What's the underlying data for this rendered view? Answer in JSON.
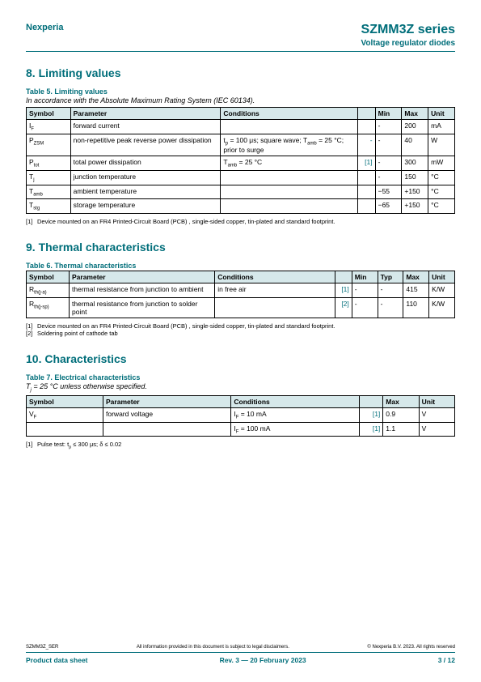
{
  "header": {
    "company": "Nexperia",
    "product": "SZMM3Z series",
    "subtitle": "Voltage regulator diodes"
  },
  "section8": {
    "title": "8.  Limiting values",
    "caption": "Table 5. Limiting values",
    "note": "In accordance with the Absolute Maximum Rating System (IEC 60134).",
    "columns": [
      "Symbol",
      "Parameter",
      "Conditions",
      "",
      "Min",
      "Max",
      "Unit"
    ],
    "rows": [
      [
        "I_F",
        "forward current",
        "",
        "",
        "-",
        "200",
        "mA"
      ],
      [
        "P_ZSM",
        "non-repetitive peak reverse power dissipation",
        "t_p = 100 μs; square wave; T_amb = 25 °C; prior to surge",
        "-",
        "-",
        "40",
        "W"
      ],
      [
        "P_tot",
        "total power dissipation",
        "T_amb = 25 °C",
        "[1]",
        "-",
        "300",
        "mW"
      ],
      [
        "T_j",
        "junction temperature",
        "",
        "",
        "-",
        "150",
        "°C"
      ],
      [
        "T_amb",
        "ambient temperature",
        "",
        "",
        "−55",
        "+150",
        "°C"
      ],
      [
        "T_stg",
        "storage temperature",
        "",
        "",
        "−65",
        "+150",
        "°C"
      ]
    ],
    "footnote": "Device mounted on an FR4 Printed-Circuit Board (PCB) , single-sided copper, tin-plated and standard footprint."
  },
  "section9": {
    "title": "9.  Thermal characteristics",
    "caption": "Table 6. Thermal characteristics",
    "columns": [
      "Symbol",
      "Parameter",
      "Conditions",
      "",
      "Min",
      "Typ",
      "Max",
      "Unit"
    ],
    "rows": [
      [
        "R_th(j-a)",
        "thermal resistance from junction to ambient",
        "in free air",
        "[1]",
        "-",
        "-",
        "415",
        "K/W"
      ],
      [
        "R_th(j-sp)",
        "thermal resistance from junction to solder point",
        "",
        "[2]",
        "-",
        "-",
        "110",
        "K/W"
      ]
    ],
    "footnote1": "Device mounted on an FR4 Printed-Circuit Board (PCB) , single-sided copper, tin-plated and standard footprint.",
    "footnote2": "Soldering point of cathode tab"
  },
  "section10": {
    "title": "10.  Characteristics",
    "caption": "Table 7. Electrical characteristics",
    "note": "T_j = 25 °C unless otherwise specified.",
    "columns": [
      "Symbol",
      "Parameter",
      "Conditions",
      "",
      "Max",
      "Unit"
    ],
    "rows": [
      [
        "V_F",
        "forward voltage",
        "I_F = 10 mA",
        "[1]",
        "0.9",
        "V"
      ],
      [
        "",
        "",
        "I_F = 100 mA",
        "[1]",
        "1.1",
        "V"
      ]
    ],
    "footnote": "Pulse test: t_p ≤ 300 μs; δ ≤ 0.02"
  },
  "footer": {
    "left_small": "SZMM3Z_SER",
    "center_small": "All information provided in this document is subject to legal disclaimers.",
    "right_small": "© Nexperia B.V. 2023. All rights reserved",
    "left": "Product data sheet",
    "center": "Rev. 3 — 20 February 2023",
    "right": "3 / 12"
  },
  "colwidths": {
    "t5": [
      "50",
      "170",
      "155",
      "20",
      "30",
      "30",
      "30"
    ],
    "t6": [
      "50",
      "170",
      "140",
      "20",
      "30",
      "30",
      "30",
      "30"
    ],
    "t7": [
      "90",
      "150",
      "150",
      "28",
      "42",
      "42"
    ]
  }
}
